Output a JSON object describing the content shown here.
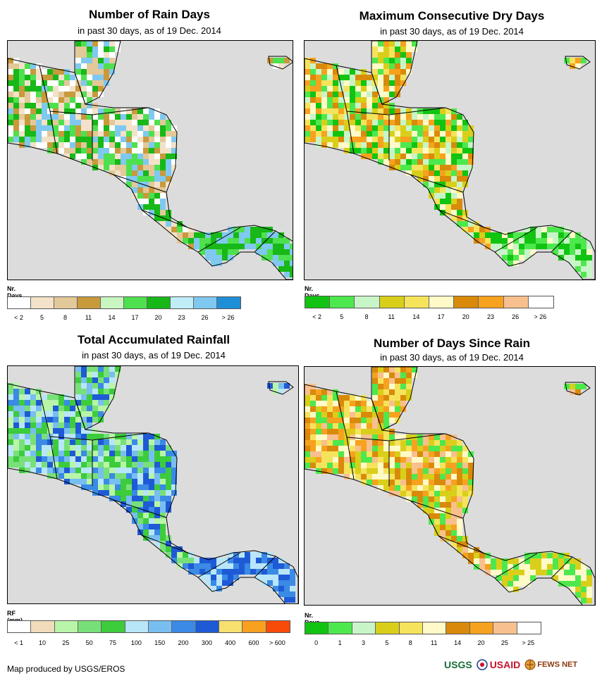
{
  "panels": [
    {
      "title": "Number of Rain Days",
      "subtitle": "in past 30 days, as of 19 Dec. 2014",
      "legend_label": "Nr. Days",
      "legend_colors": [
        "#ffffff",
        "#f3e2c9",
        "#e3c899",
        "#c89a3c",
        "#c8f5c0",
        "#4ee04e",
        "#17b817",
        "#c0eef8",
        "#7fc9f0",
        "#1e8fd6"
      ],
      "ticks": [
        "< 2",
        "5",
        "8",
        "11",
        "14",
        "17",
        "20",
        "23",
        "26",
        "> 26"
      ],
      "palette": [
        "#ffffff",
        "#f3e2c9",
        "#e3c899",
        "#c89a3c",
        "#4ee04e",
        "#17b817",
        "#7fc9f0"
      ]
    },
    {
      "title": "Maximum Consecutive Dry Days",
      "subtitle": "in past 30 days, as of 19 Dec. 2014",
      "legend_label": "Nr. Days",
      "legend_colors": [
        "#12c412",
        "#4de84d",
        "#c8f5c8",
        "#d9cf1a",
        "#f6e35c",
        "#fffac8",
        "#d98a0a",
        "#f6a21e",
        "#f8c08e",
        "#ffffff"
      ],
      "ticks": [
        "< 2",
        "5",
        "8",
        "11",
        "14",
        "17",
        "20",
        "23",
        "26",
        "> 26"
      ],
      "palette": [
        "#f6a21e",
        "#d98a0a",
        "#f6e35c",
        "#d9cf1a",
        "#fffac8",
        "#4de84d",
        "#12c412",
        "#c8f5c8"
      ]
    },
    {
      "title": "Total Accumulated Rainfall",
      "subtitle": "in past 30 days, as of 19 Dec. 2014",
      "legend_label": "RF (mm)",
      "legend_colors": [
        "#ffffff",
        "#f0dcba",
        "#b8f5a8",
        "#78e078",
        "#3ccc3c",
        "#b8e6f8",
        "#78bef0",
        "#3a8ae6",
        "#1e5ad6",
        "#f8e070",
        "#f8a020",
        "#f84a0a"
      ],
      "ticks": [
        "< 1",
        "10",
        "25",
        "50",
        "75",
        "100",
        "150",
        "200",
        "300",
        "400",
        "600",
        "> 600"
      ],
      "palette": [
        "#b8f5a8",
        "#78e078",
        "#3ccc3c",
        "#78bef0",
        "#3a8ae6",
        "#1e5ad6",
        "#b8e6f8"
      ]
    },
    {
      "title": "Number of Days Since Rain",
      "subtitle": "in past 30 days, as of 19 Dec. 2014",
      "legend_label": "Nr. Days",
      "legend_colors": [
        "#12c412",
        "#4de84d",
        "#c8f5c8",
        "#d9cf1a",
        "#f6e35c",
        "#fffac8",
        "#d98a0a",
        "#f6a21e",
        "#f8c08e",
        "#ffffff"
      ],
      "ticks": [
        "0",
        "1",
        "3",
        "5",
        "8",
        "11",
        "14",
        "20",
        "25",
        "> 25"
      ],
      "palette": [
        "#f8c08e",
        "#f6a21e",
        "#d98a0a",
        "#f6e35c",
        "#fffac8",
        "#d9cf1a",
        "#4de84d"
      ]
    }
  ],
  "footer": "Map produced by USGS/EROS",
  "logos": [
    "USGS",
    "USAID",
    "FEWS NET"
  ]
}
